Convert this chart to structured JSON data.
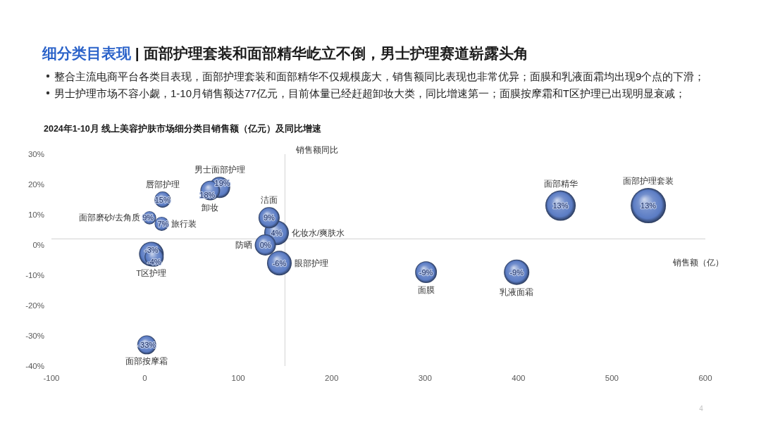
{
  "chart_data": {
    "type": "bubble",
    "title": "细分类目表现 | 面部护理套装和面部精华屹立不倒，男士护理赛道崭露头角",
    "subtitle": "2024年1-10月 线上美容护肤市场细分类目销售额（亿元）及同比增速",
    "xlabel": "销售额（亿）",
    "ylabel": "销售额同比",
    "xlim": [
      -100,
      600
    ],
    "xticks": [
      -100,
      0,
      100,
      200,
      300,
      400,
      500,
      600
    ],
    "ylim": [
      -40,
      30
    ],
    "yticks": [
      {
        "value": -40,
        "label": "-40%"
      },
      {
        "value": -30,
        "label": "-30%"
      },
      {
        "value": -20,
        "label": "-20%"
      },
      {
        "value": -10,
        "label": "-10%"
      },
      {
        "value": 0,
        "label": "0%"
      },
      {
        "value": 10,
        "label": "10%"
      },
      {
        "value": 20,
        "label": "20%"
      },
      {
        "value": 30,
        "label": "30%"
      }
    ],
    "ref_lines": [
      {
        "axis": "x",
        "value": 150,
        "color": "#d9d9d9"
      },
      {
        "axis": "y",
        "value": 2,
        "color": "#d9d9d9"
      }
    ],
    "series": [
      {
        "color": "#5b7cc4",
        "x": [
          539,
          445,
          398,
          301,
          144,
          141,
          133,
          129,
          80,
          70,
          19,
          5,
          18,
          7,
          10,
          2
        ],
        "values": [
          13,
          13,
          -9,
          -9,
          -6,
          4,
          9,
          0,
          19,
          18,
          15,
          9,
          7,
          -3,
          -4,
          -33
        ],
        "sizes": [
          1,
          0.74,
          0.52,
          0.38,
          0.49,
          0.49,
          0.36,
          0.36,
          0.36,
          0.31,
          0.21,
          0.14,
          0.16,
          0.49,
          0.29,
          0.29
        ],
        "value_labels": [
          "13%",
          "13%",
          "-9%",
          "-9%",
          "-6%",
          "4%",
          "9%",
          "0%",
          "19%",
          "18%",
          "15%",
          "9%",
          "7%",
          "-3%",
          "-4%",
          "-33%"
        ]
      }
    ],
    "annotations": [
      "整合主流电商平台各类目表现，面部护理套装和面部精华不仅规模庞大，销售额同比表现也非常优异；面膜和乳液面霜均出现9个点的下滑；",
      "男士护理市场不容小觑，1-10月销售额达77亿元，目前体量已经赶超卸妆大类，同比增速第一；面膜按摩霜和T区护理已出现明显衰减；",
      {
        "text": "面部护理套装",
        "x": 539,
        "y": 13
      },
      {
        "text": "面部精华",
        "x": 445,
        "y": 13
      },
      {
        "text": "乳液面霜",
        "x": 398,
        "y": -9
      },
      {
        "text": "面膜",
        "x": 301,
        "y": -9
      },
      {
        "text": "眼部护理",
        "x": 144,
        "y": -6
      },
      {
        "text": "化妆水/爽肤水",
        "x": 141,
        "y": 4
      },
      {
        "text": "洁面",
        "x": 133,
        "y": 9
      },
      {
        "text": "防晒",
        "x": 129,
        "y": 0
      },
      {
        "text": "男士面部护理",
        "x": 80,
        "y": 19
      },
      {
        "text": "卸妆",
        "x": 70,
        "y": 18
      },
      {
        "text": "唇部护理",
        "x": 19,
        "y": 15
      },
      {
        "text": "面部磨砂/去角质",
        "x": 5,
        "y": 9
      },
      {
        "text": "旅行装",
        "x": 18,
        "y": 7
      },
      {
        "text": "T区护理",
        "x": 7,
        "y": -3
      },
      {
        "text": "面部按摩霜",
        "x": 2,
        "y": -33
      },
      "4"
    ]
  }
}
